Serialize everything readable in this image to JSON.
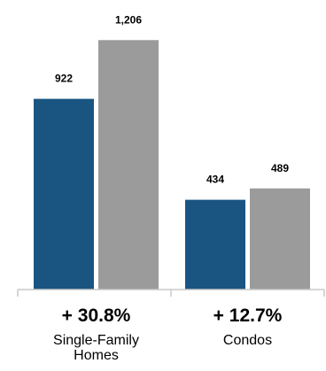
{
  "chart_data": {
    "type": "bar",
    "groups": [
      {
        "change": "+ 30.8%",
        "category_lines": [
          "Single-Family",
          "Homes"
        ],
        "values": [
          922,
          1206
        ],
        "value_labels": [
          "922",
          "1,206"
        ]
      },
      {
        "change": "+ 12.7%",
        "category_lines": [
          "Condos"
        ],
        "values": [
          434,
          489
        ],
        "value_labels": [
          "434",
          "489"
        ]
      }
    ],
    "series_colors": [
      "#1a5582",
      "#9b9b9b"
    ],
    "axis_color": "#c8c8c8",
    "ylim": [
      0,
      1250
    ],
    "grid": false,
    "legend": "none"
  }
}
